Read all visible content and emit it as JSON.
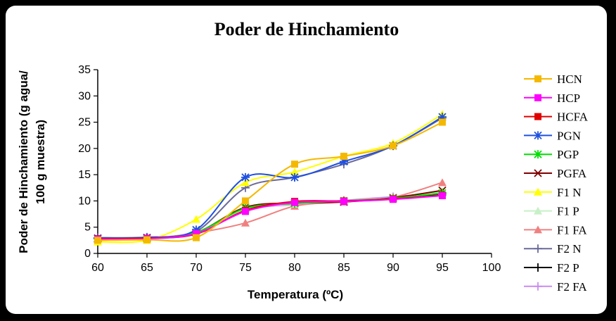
{
  "chart_data": {
    "type": "line",
    "title": "Poder de Hinchamiento",
    "xlabel": "Temperatura (ºC)",
    "ylabel_lines": [
      "Poder de Hinchamiento (g agua/",
      "100 g muestra)"
    ],
    "x": [
      60,
      65,
      70,
      75,
      80,
      85,
      90,
      95
    ],
    "xlim": [
      60,
      100
    ],
    "ylim": [
      0,
      35
    ],
    "xticks": [
      60,
      65,
      70,
      75,
      80,
      85,
      90,
      95,
      100
    ],
    "yticks": [
      0,
      5,
      10,
      15,
      20,
      25,
      30,
      35
    ],
    "grid": false,
    "legend": "right",
    "series": [
      {
        "name": "HCN",
        "color": "#F5B800",
        "marker": "square",
        "values": [
          2.5,
          2.6,
          3.0,
          10.0,
          17.0,
          18.5,
          20.5,
          25.0
        ]
      },
      {
        "name": "HCP",
        "color": "#FF00FF",
        "marker": "square",
        "values": [
          2.7,
          2.8,
          3.8,
          8.0,
          9.7,
          9.9,
          10.3,
          11.0
        ]
      },
      {
        "name": "HCFA",
        "color": "#E00000",
        "marker": "square",
        "values": [
          2.8,
          2.9,
          3.7,
          8.2,
          9.9,
          10.0,
          10.4,
          11.1
        ]
      },
      {
        "name": "PGN",
        "color": "#1F50E0",
        "marker": "asterisk",
        "values": [
          2.9,
          3.0,
          4.5,
          14.5,
          14.5,
          17.5,
          20.5,
          26.0
        ]
      },
      {
        "name": "PGP",
        "color": "#00E000",
        "marker": "asterisk",
        "values": [
          2.8,
          2.9,
          4.0,
          8.6,
          9.5,
          10.0,
          10.5,
          11.5
        ]
      },
      {
        "name": "PGFA",
        "color": "#800000",
        "marker": "x",
        "values": [
          2.9,
          3.0,
          4.0,
          8.8,
          9.6,
          9.8,
          10.6,
          12.0
        ]
      },
      {
        "name": "F1 N",
        "color": "#FFFF00",
        "marker": "triangle",
        "values": [
          2.2,
          2.5,
          6.5,
          13.5,
          15.5,
          18.5,
          21.0,
          26.5
        ]
      },
      {
        "name": "F1 P",
        "color": "#C8F0C8",
        "marker": "triangle",
        "values": [
          2.6,
          2.7,
          3.8,
          8.4,
          9.4,
          10.0,
          10.6,
          11.8
        ]
      },
      {
        "name": "F1 FA",
        "color": "#F08080",
        "marker": "triangle",
        "values": [
          2.7,
          2.8,
          3.9,
          5.8,
          9.0,
          9.8,
          10.7,
          13.5
        ]
      },
      {
        "name": "F2 N",
        "color": "#6A6A9A",
        "marker": "plus",
        "values": [
          3.0,
          3.1,
          4.2,
          12.5,
          14.5,
          17.0,
          20.5,
          25.8
        ]
      },
      {
        "name": "F2 P",
        "color": "#000000",
        "marker": "plus",
        "values": [
          2.8,
          2.9,
          3.9,
          8.5,
          9.6,
          10.0,
          10.5,
          11.2
        ]
      },
      {
        "name": "F2 FA",
        "color": "#C88CF0",
        "marker": "plus",
        "values": [
          2.8,
          2.9,
          4.0,
          8.3,
          9.3,
          10.1,
          10.8,
          11.6
        ]
      }
    ]
  }
}
